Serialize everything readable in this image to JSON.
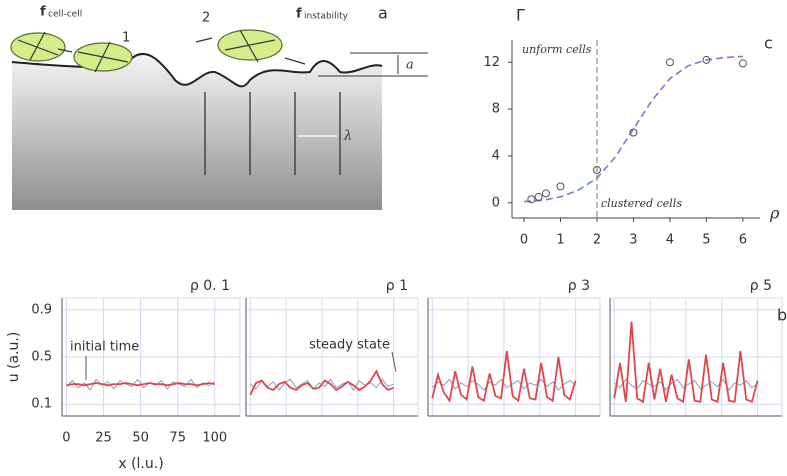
{
  "diagram": {
    "panel_label": "a",
    "cell_labels": [
      "1",
      "2"
    ],
    "forces": [
      {
        "symbol": "f",
        "subscript": "cell-cell"
      },
      {
        "symbol": "f",
        "subscript": "instability"
      }
    ],
    "amplitude": "a",
    "wavelength": "λ"
  },
  "chart_data": [
    {
      "type": "scatter",
      "panel_label": "c",
      "y_label": "Γ",
      "x_label": "ρ",
      "annotations": [
        "unform cells",
        "clustered cells"
      ],
      "threshold_x": 2,
      "x": [
        0.2,
        0.4,
        0.6,
        1,
        2,
        3,
        4,
        5,
        6
      ],
      "values": [
        0.3,
        0.5,
        0.8,
        1.4,
        2.8,
        6,
        12,
        12.2,
        11.9
      ],
      "color": "#555555",
      "fit": {
        "x": [
          0,
          0.5,
          1,
          1.5,
          2,
          2.5,
          3,
          3.5,
          4,
          4.5,
          5,
          5.5,
          6
        ],
        "values": [
          0.1,
          0.2,
          0.5,
          1.1,
          2.1,
          3.9,
          6.3,
          8.7,
          10.6,
          11.7,
          12.2,
          12.4,
          12.5
        ],
        "color": "#6b7fd7"
      },
      "xlim": [
        -0.33,
        6.47
      ],
      "ylim": [
        -1.3,
        13.9
      ],
      "xticks": [
        0,
        1,
        2,
        3,
        4,
        5,
        6
      ],
      "yticks": [
        0,
        4,
        8,
        12
      ]
    },
    {
      "type": "line",
      "title": "ρ 0. 1",
      "x_label": "x (l.u.)",
      "y_label": "u (a.u.)",
      "annotation": "initial time",
      "tick_labels": true,
      "x": [
        0,
        4,
        8,
        12,
        16,
        20,
        24,
        28,
        32,
        36,
        40,
        44,
        48,
        52,
        56,
        60,
        64,
        68,
        72,
        76,
        80,
        84,
        88,
        92,
        96,
        100
      ],
      "series": [
        {
          "color": "#8e9bbd",
          "values": [
            0.25,
            0.3,
            0.24,
            0.28,
            0.22,
            0.31,
            0.26,
            0.29,
            0.23,
            0.3,
            0.27,
            0.25,
            0.31,
            0.24,
            0.28,
            0.26,
            0.3,
            0.23,
            0.29,
            0.27,
            0.25,
            0.31,
            0.24,
            0.28,
            0.26,
            0.29
          ]
        },
        {
          "color": "#e0474c",
          "values": [
            0.26,
            0.27,
            0.27,
            0.26,
            0.27,
            0.28,
            0.27,
            0.26,
            0.27,
            0.27,
            0.28,
            0.27,
            0.26,
            0.27,
            0.28,
            0.27,
            0.27,
            0.26,
            0.27,
            0.28,
            0.27,
            0.27,
            0.26,
            0.27,
            0.28,
            0.27
          ]
        }
      ],
      "xlim": [
        -3,
        117
      ],
      "ylim": [
        0,
        1
      ],
      "xticks": [
        0,
        25,
        50,
        75,
        100
      ],
      "yticks": [
        0.1,
        0.5,
        0.9
      ]
    },
    {
      "type": "line",
      "title": "ρ 1",
      "annotation": "steady state",
      "tick_labels": false,
      "x": [
        0,
        4,
        8,
        12,
        16,
        20,
        24,
        28,
        32,
        36,
        40,
        44,
        48,
        52,
        56,
        60,
        64,
        68,
        72,
        76,
        80,
        84,
        88,
        92,
        96,
        100
      ],
      "series": [
        {
          "color": "#8e9bbd",
          "values": [
            0.27,
            0.23,
            0.3,
            0.25,
            0.29,
            0.22,
            0.28,
            0.31,
            0.24,
            0.27,
            0.3,
            0.23,
            0.28,
            0.25,
            0.31,
            0.24,
            0.27,
            0.29,
            0.22,
            0.3,
            0.26,
            0.28,
            0.24,
            0.31,
            0.25,
            0.27
          ]
        },
        {
          "color": "#e0474c",
          "values": [
            0.18,
            0.28,
            0.3,
            0.24,
            0.22,
            0.27,
            0.29,
            0.24,
            0.22,
            0.26,
            0.28,
            0.23,
            0.24,
            0.3,
            0.27,
            0.22,
            0.25,
            0.29,
            0.26,
            0.22,
            0.25,
            0.3,
            0.38,
            0.27,
            0.22,
            0.24
          ]
        }
      ],
      "xlim": [
        -3,
        117
      ],
      "ylim": [
        0,
        1
      ],
      "xticks": [
        0,
        25,
        50,
        75,
        100
      ],
      "yticks": [
        0.1,
        0.5,
        0.9
      ]
    },
    {
      "type": "line",
      "title": "ρ 3",
      "tick_labels": false,
      "x": [
        0,
        4,
        8,
        12,
        16,
        20,
        24,
        28,
        32,
        36,
        40,
        44,
        48,
        52,
        56,
        60,
        64,
        68,
        72,
        76,
        80,
        84,
        88,
        92,
        96,
        100
      ],
      "series": [
        {
          "color": "#8e9bbd",
          "values": [
            0.24,
            0.29,
            0.26,
            0.31,
            0.23,
            0.28,
            0.25,
            0.3,
            0.27,
            0.22,
            0.29,
            0.26,
            0.31,
            0.24,
            0.27,
            0.3,
            0.23,
            0.28,
            0.26,
            0.31,
            0.25,
            0.29,
            0.22,
            0.27,
            0.3,
            0.26
          ]
        },
        {
          "color": "#e0474c",
          "values": [
            0.15,
            0.35,
            0.2,
            0.13,
            0.38,
            0.18,
            0.14,
            0.42,
            0.16,
            0.13,
            0.36,
            0.17,
            0.15,
            0.55,
            0.17,
            0.13,
            0.4,
            0.15,
            0.14,
            0.45,
            0.16,
            0.13,
            0.5,
            0.18,
            0.14,
            0.3
          ]
        }
      ],
      "xlim": [
        -3,
        117
      ],
      "ylim": [
        0,
        1
      ],
      "xticks": [
        0,
        25,
        50,
        75,
        100
      ],
      "yticks": [
        0.1,
        0.5,
        0.9
      ]
    },
    {
      "type": "line",
      "title": "ρ 5",
      "panel_label": "b",
      "tick_labels": false,
      "x": [
        0,
        4,
        8,
        12,
        16,
        20,
        24,
        28,
        32,
        36,
        40,
        44,
        48,
        52,
        56,
        60,
        64,
        68,
        72,
        76,
        80,
        84,
        88,
        92,
        96,
        100
      ],
      "series": [
        {
          "color": "#8e9bbd",
          "values": [
            0.28,
            0.24,
            0.31,
            0.26,
            0.23,
            0.3,
            0.27,
            0.25,
            0.29,
            0.22,
            0.28,
            0.31,
            0.24,
            0.27,
            0.3,
            0.23,
            0.26,
            0.29,
            0.25,
            0.31,
            0.22,
            0.28,
            0.26,
            0.3,
            0.24,
            0.27
          ]
        },
        {
          "color": "#e0474c",
          "values": [
            0.15,
            0.45,
            0.12,
            0.8,
            0.15,
            0.12,
            0.45,
            0.14,
            0.4,
            0.12,
            0.35,
            0.15,
            0.12,
            0.48,
            0.13,
            0.12,
            0.52,
            0.14,
            0.12,
            0.45,
            0.13,
            0.12,
            0.55,
            0.14,
            0.12,
            0.3
          ]
        }
      ],
      "xlim": [
        -3,
        117
      ],
      "ylim": [
        0,
        1
      ],
      "xticks": [
        0,
        25,
        50,
        75,
        100
      ],
      "yticks": [
        0.1,
        0.5,
        0.9
      ]
    }
  ]
}
